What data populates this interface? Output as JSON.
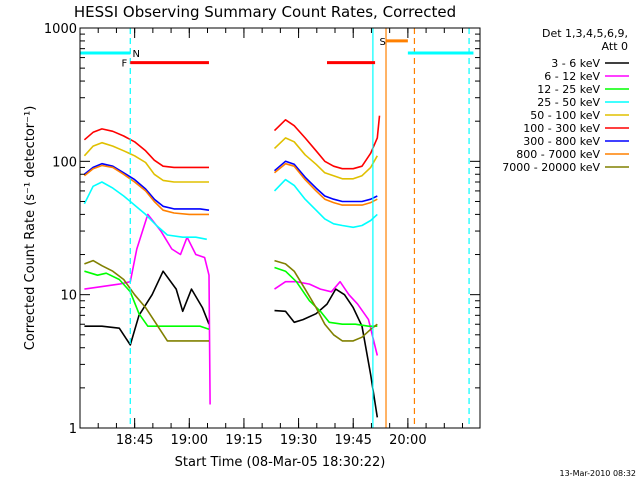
{
  "chart_data": {
    "type": "line",
    "title": "HESSI Observing Summary Count Rates, Corrected",
    "xlabel": "Start Time (08-Mar-05 18:30:22)",
    "ylabel": "Corrected Count Rate (s⁻¹ detector⁻¹)",
    "yscale": "log",
    "ylim": [
      1,
      1000
    ],
    "xlim_minutes": [
      18.5,
      20.33
    ],
    "y_ticks": [
      {
        "value": 1,
        "label": "1"
      },
      {
        "value": 10,
        "label": "10"
      },
      {
        "value": 100,
        "label": "100"
      },
      {
        "value": 1000,
        "label": "1000"
      }
    ],
    "x_ticks": [
      {
        "value": 18.75,
        "label": "18:45"
      },
      {
        "value": 19.0,
        "label": "19:00"
      },
      {
        "value": 19.25,
        "label": "19:15"
      },
      {
        "value": 19.5,
        "label": "19:30"
      },
      {
        "value": 19.75,
        "label": "19:45"
      },
      {
        "value": 20.0,
        "label": "20:00"
      }
    ],
    "legend": {
      "title_lines": [
        "Det 1,3,4,5,6,9,",
        "Att 0"
      ],
      "placement": "right"
    },
    "series": [
      {
        "name": "3 - 6 keV",
        "color": "#000000",
        "points": [
          [
            18.52,
            5.8
          ],
          [
            18.6,
            5.8
          ],
          [
            18.68,
            5.6
          ],
          [
            18.73,
            4.2
          ],
          [
            18.77,
            7.0
          ],
          [
            18.83,
            10
          ],
          [
            18.88,
            15
          ],
          [
            18.94,
            11
          ],
          [
            18.97,
            7.5
          ],
          [
            19.01,
            11
          ],
          [
            19.06,
            8
          ],
          [
            19.09,
            6
          ],
          [
            19.39,
            7.6
          ],
          [
            19.44,
            7.5
          ],
          [
            19.48,
            6.2
          ],
          [
            19.52,
            6.5
          ],
          [
            19.58,
            7.2
          ],
          [
            19.63,
            8.5
          ],
          [
            19.67,
            11
          ],
          [
            19.71,
            10
          ],
          [
            19.75,
            8
          ],
          [
            19.79,
            5.8
          ],
          [
            19.83,
            2.5
          ],
          [
            19.86,
            1.2
          ]
        ]
      },
      {
        "name": "6 - 12 keV",
        "color": "#ff00ff",
        "points": [
          [
            18.52,
            11
          ],
          [
            18.6,
            11.5
          ],
          [
            18.68,
            12
          ],
          [
            18.73,
            12.5
          ],
          [
            18.76,
            22
          ],
          [
            18.81,
            40
          ],
          [
            18.87,
            30
          ],
          [
            18.92,
            22
          ],
          [
            18.96,
            20
          ],
          [
            18.99,
            27
          ],
          [
            19.03,
            20
          ],
          [
            19.07,
            19
          ],
          [
            19.09,
            14
          ],
          [
            19.095,
            1.5
          ],
          [
            19.39,
            11
          ],
          [
            19.44,
            12.5
          ],
          [
            19.49,
            12.5
          ],
          [
            19.55,
            12
          ],
          [
            19.6,
            11
          ],
          [
            19.65,
            10.5
          ],
          [
            19.69,
            12.5
          ],
          [
            19.73,
            10
          ],
          [
            19.77,
            8.5
          ],
          [
            19.82,
            6.5
          ],
          [
            19.86,
            3.5
          ]
        ]
      },
      {
        "name": "12 - 25 keV",
        "color": "#00ff00",
        "points": [
          [
            18.52,
            15
          ],
          [
            18.58,
            14
          ],
          [
            18.62,
            14.5
          ],
          [
            18.68,
            13
          ],
          [
            18.73,
            10.5
          ],
          [
            18.77,
            7.2
          ],
          [
            18.81,
            5.8
          ],
          [
            18.86,
            5.8
          ],
          [
            18.92,
            5.8
          ],
          [
            19.0,
            5.8
          ],
          [
            19.05,
            5.8
          ],
          [
            19.09,
            5.5
          ],
          [
            19.39,
            16
          ],
          [
            19.44,
            15
          ],
          [
            19.49,
            12.5
          ],
          [
            19.55,
            9
          ],
          [
            19.6,
            7.5
          ],
          [
            19.64,
            6.2
          ],
          [
            19.7,
            6
          ],
          [
            19.76,
            6
          ],
          [
            19.82,
            5.8
          ],
          [
            19.86,
            5.8
          ]
        ]
      },
      {
        "name": "25 - 50 keV",
        "color": "#00ffff",
        "points": [
          [
            18.52,
            48
          ],
          [
            18.56,
            65
          ],
          [
            18.6,
            70
          ],
          [
            18.65,
            63
          ],
          [
            18.7,
            55
          ],
          [
            18.75,
            47
          ],
          [
            18.8,
            40
          ],
          [
            18.85,
            33
          ],
          [
            18.9,
            28
          ],
          [
            18.97,
            27
          ],
          [
            19.03,
            27
          ],
          [
            19.08,
            26
          ],
          [
            19.39,
            60
          ],
          [
            19.44,
            73
          ],
          [
            19.48,
            66
          ],
          [
            19.53,
            52
          ],
          [
            19.58,
            43
          ],
          [
            19.62,
            37
          ],
          [
            19.66,
            34
          ],
          [
            19.7,
            33
          ],
          [
            19.75,
            32
          ],
          [
            19.79,
            33
          ],
          [
            19.83,
            36
          ],
          [
            19.86,
            40
          ]
        ]
      },
      {
        "name": "50 - 100 keV",
        "color": "#e0c000",
        "points": [
          [
            18.52,
            110
          ],
          [
            18.56,
            130
          ],
          [
            18.6,
            138
          ],
          [
            18.65,
            130
          ],
          [
            18.7,
            120
          ],
          [
            18.75,
            110
          ],
          [
            18.8,
            98
          ],
          [
            18.84,
            80
          ],
          [
            18.88,
            72
          ],
          [
            18.93,
            70
          ],
          [
            19.0,
            70
          ],
          [
            19.05,
            70
          ],
          [
            19.09,
            70
          ],
          [
            19.39,
            125
          ],
          [
            19.44,
            150
          ],
          [
            19.48,
            140
          ],
          [
            19.53,
            112
          ],
          [
            19.58,
            95
          ],
          [
            19.62,
            82
          ],
          [
            19.66,
            78
          ],
          [
            19.7,
            74
          ],
          [
            19.75,
            74
          ],
          [
            19.79,
            78
          ],
          [
            19.83,
            90
          ],
          [
            19.86,
            110
          ]
        ]
      },
      {
        "name": "100 - 300 keV",
        "color": "#ff0000",
        "points": [
          [
            18.52,
            145
          ],
          [
            18.56,
            165
          ],
          [
            18.6,
            175
          ],
          [
            18.65,
            168
          ],
          [
            18.7,
            155
          ],
          [
            18.75,
            140
          ],
          [
            18.8,
            120
          ],
          [
            18.84,
            102
          ],
          [
            18.88,
            92
          ],
          [
            18.93,
            90
          ],
          [
            19.0,
            90
          ],
          [
            19.05,
            90
          ],
          [
            19.09,
            90
          ],
          [
            19.39,
            170
          ],
          [
            19.44,
            205
          ],
          [
            19.48,
            185
          ],
          [
            19.53,
            150
          ],
          [
            19.58,
            120
          ],
          [
            19.62,
            100
          ],
          [
            19.66,
            92
          ],
          [
            19.7,
            88
          ],
          [
            19.75,
            88
          ],
          [
            19.79,
            92
          ],
          [
            19.83,
            115
          ],
          [
            19.86,
            150
          ],
          [
            19.87,
            220
          ]
        ]
      },
      {
        "name": "300 - 800 keV",
        "color": "#0000ff",
        "points": [
          [
            18.52,
            80
          ],
          [
            18.56,
            90
          ],
          [
            18.6,
            96
          ],
          [
            18.65,
            92
          ],
          [
            18.7,
            82
          ],
          [
            18.75,
            73
          ],
          [
            18.8,
            62
          ],
          [
            18.84,
            52
          ],
          [
            18.88,
            46
          ],
          [
            18.93,
            44
          ],
          [
            19.0,
            44
          ],
          [
            19.05,
            44
          ],
          [
            19.09,
            43
          ],
          [
            19.39,
            85
          ],
          [
            19.44,
            100
          ],
          [
            19.48,
            95
          ],
          [
            19.53,
            76
          ],
          [
            19.58,
            63
          ],
          [
            19.62,
            55
          ],
          [
            19.66,
            52
          ],
          [
            19.7,
            50
          ],
          [
            19.75,
            50
          ],
          [
            19.79,
            50
          ],
          [
            19.83,
            52
          ],
          [
            19.86,
            55
          ]
        ]
      },
      {
        "name": "800 - 7000 keV",
        "color": "#ff8000",
        "points": [
          [
            18.52,
            78
          ],
          [
            18.56,
            88
          ],
          [
            18.6,
            93
          ],
          [
            18.65,
            90
          ],
          [
            18.7,
            80
          ],
          [
            18.75,
            70
          ],
          [
            18.8,
            60
          ],
          [
            18.84,
            50
          ],
          [
            18.88,
            43
          ],
          [
            18.93,
            41
          ],
          [
            19.0,
            40
          ],
          [
            19.05,
            40
          ],
          [
            19.09,
            40
          ],
          [
            19.39,
            82
          ],
          [
            19.44,
            96
          ],
          [
            19.48,
            92
          ],
          [
            19.53,
            73
          ],
          [
            19.58,
            60
          ],
          [
            19.62,
            52
          ],
          [
            19.66,
            49
          ],
          [
            19.7,
            47
          ],
          [
            19.75,
            47
          ],
          [
            19.79,
            47
          ],
          [
            19.83,
            49
          ],
          [
            19.86,
            52
          ]
        ]
      },
      {
        "name": "7000 - 20000 keV",
        "color": "#808000",
        "points": [
          [
            18.52,
            17
          ],
          [
            18.56,
            18
          ],
          [
            18.6,
            16.5
          ],
          [
            18.65,
            15
          ],
          [
            18.7,
            13
          ],
          [
            18.75,
            10
          ],
          [
            18.8,
            8
          ],
          [
            18.85,
            6
          ],
          [
            18.9,
            4.5
          ],
          [
            18.95,
            4.5
          ],
          [
            19.0,
            4.5
          ],
          [
            19.05,
            4.5
          ],
          [
            19.09,
            4.5
          ],
          [
            19.39,
            18
          ],
          [
            19.44,
            17
          ],
          [
            19.48,
            15
          ],
          [
            19.53,
            11
          ],
          [
            19.58,
            8
          ],
          [
            19.62,
            6
          ],
          [
            19.66,
            5
          ],
          [
            19.7,
            4.5
          ],
          [
            19.75,
            4.5
          ],
          [
            19.79,
            4.8
          ],
          [
            19.83,
            5.5
          ],
          [
            19.86,
            6
          ]
        ]
      }
    ],
    "markers": [
      {
        "label": "F",
        "color": "#ff0000",
        "text_at": 18.69,
        "value": 550,
        "bars": [
          [
            18.73,
            19.09
          ],
          [
            19.63,
            19.85
          ]
        ]
      },
      {
        "label": "N",
        "color": "#00ffff",
        "text_at": 18.74,
        "value": 650,
        "bars": [
          [
            18.5,
            18.73
          ],
          [
            20.0,
            20.3
          ]
        ]
      },
      {
        "label": "S",
        "color": "#ff8000",
        "text_at": 19.87,
        "value": 800,
        "bars": [
          [
            19.9,
            20.0
          ]
        ]
      }
    ],
    "vlines": [
      {
        "at": 18.73,
        "color": "#00ffff",
        "dashed": true
      },
      {
        "at": 19.84,
        "color": "#00ffff",
        "dashed": false
      },
      {
        "at": 19.9,
        "color": "#ff8000",
        "dashed": false
      },
      {
        "at": 20.03,
        "color": "#ff8000",
        "dashed": true
      },
      {
        "at": 20.28,
        "color": "#00ffff",
        "dashed": true
      }
    ],
    "footer": "13-Mar-2010 08:32"
  }
}
